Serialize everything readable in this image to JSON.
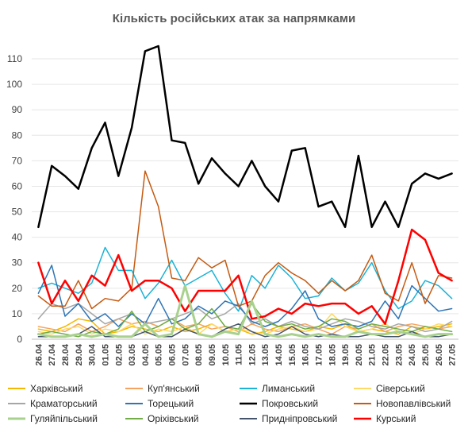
{
  "chart_data": {
    "type": "line",
    "title": "Кількість російських атак за напрямками",
    "xlabel": "",
    "ylabel": "",
    "ylim": [
      0,
      115
    ],
    "yticks": [
      0,
      10,
      20,
      30,
      40,
      50,
      60,
      70,
      80,
      90,
      100,
      110
    ],
    "grid": true,
    "legend_position": "bottom",
    "x": [
      "26.04",
      "27.04",
      "28.04",
      "29.04",
      "30.04",
      "01.05",
      "02.05",
      "03.05",
      "04.05",
      "05.05",
      "06.05",
      "07.05",
      "08.05",
      "09.05",
      "10.05",
      "11.05",
      "12.05",
      "13.05",
      "14.05",
      "15.05",
      "16.05",
      "17.05",
      "18.05",
      "19.05",
      "20.05",
      "21.05",
      "22.05",
      "23.05",
      "24.05",
      "25.05",
      "26.05",
      "27.05"
    ],
    "series": [
      {
        "name": "Харківський",
        "color": "#f5b800",
        "width": 1.5,
        "values": [
          4,
          3,
          5,
          8,
          7,
          2,
          3,
          5,
          4,
          3,
          5,
          3,
          4,
          6,
          3,
          4,
          2,
          3,
          5,
          4,
          3,
          5,
          4,
          6,
          3,
          4,
          3,
          2,
          5,
          4,
          5,
          6
        ]
      },
      {
        "name": "Куп'янський",
        "color": "#f4a460",
        "width": 1.5,
        "values": [
          5,
          4,
          3,
          6,
          3,
          5,
          8,
          6,
          7,
          5,
          8,
          5,
          6,
          4,
          5,
          3,
          6,
          4,
          3,
          5,
          6,
          4,
          2,
          5,
          4,
          6,
          3,
          5,
          6,
          5,
          4,
          5
        ]
      },
      {
        "name": "Лиманський",
        "color": "#1bb3d6",
        "width": 1.5,
        "values": [
          20,
          22,
          20,
          18,
          22,
          36,
          27,
          27,
          16,
          22,
          31,
          21,
          24,
          27,
          18,
          11,
          25,
          20,
          29,
          24,
          16,
          17,
          24,
          19,
          22,
          30,
          19,
          12,
          15,
          23,
          21,
          16
        ]
      },
      {
        "name": "Сіверський",
        "color": "#ffd966",
        "width": 1.5,
        "values": [
          3,
          2,
          4,
          5,
          2,
          4,
          3,
          6,
          2,
          4,
          3,
          5,
          2,
          6,
          3,
          4,
          3,
          2,
          4,
          5,
          3,
          4,
          10,
          5,
          3,
          4,
          6,
          3,
          2,
          4,
          6,
          5
        ]
      },
      {
        "name": "Краматорський",
        "color": "#a6a6a6",
        "width": 1.5,
        "values": [
          8,
          14,
          12,
          14,
          10,
          6,
          8,
          10,
          6,
          7,
          8,
          10,
          12,
          8,
          10,
          14,
          6,
          8,
          5,
          7,
          5,
          4,
          6,
          8,
          7,
          5,
          4,
          6,
          5,
          3,
          4,
          7
        ]
      },
      {
        "name": "Торецький",
        "color": "#2e75b6",
        "width": 1.5,
        "values": [
          18,
          29,
          9,
          14,
          7,
          10,
          5,
          10,
          6,
          16,
          6,
          8,
          13,
          10,
          15,
          13,
          7,
          5,
          7,
          12,
          19,
          8,
          5,
          6,
          5,
          7,
          15,
          8,
          21,
          16,
          11,
          12
        ]
      },
      {
        "name": "Покровський",
        "color": "#000000",
        "width": 2.5,
        "values": [
          44,
          68,
          64,
          59,
          75,
          85,
          64,
          83,
          113,
          115,
          78,
          77,
          61,
          71,
          65,
          60,
          70,
          60,
          54,
          74,
          75,
          52,
          54,
          44,
          72,
          44,
          54,
          44,
          61,
          65,
          63,
          65
        ]
      },
      {
        "name": "Новопавлівський",
        "color": "#c55a11",
        "width": 1.5,
        "values": [
          17,
          13,
          13,
          23,
          12,
          16,
          15,
          20,
          66,
          52,
          24,
          23,
          32,
          28,
          31,
          13,
          15,
          25,
          30,
          26,
          23,
          18,
          23,
          19,
          23,
          33,
          18,
          15,
          30,
          14,
          25,
          24
        ]
      },
      {
        "name": "Гуляйпільський",
        "color": "#a9d18e",
        "width": 3,
        "values": [
          2,
          1,
          1,
          2,
          1,
          2,
          1,
          1,
          6,
          1,
          2,
          21,
          2,
          1,
          3,
          2,
          15,
          2,
          1,
          2,
          1,
          2,
          1,
          1,
          3,
          2,
          2,
          3,
          2,
          1,
          2,
          2
        ]
      },
      {
        "name": "Оріхівський",
        "color": "#70ad47",
        "width": 1.5,
        "values": [
          2,
          3,
          2,
          1,
          3,
          2,
          4,
          11,
          3,
          5,
          8,
          4,
          6,
          12,
          5,
          4,
          14,
          7,
          5,
          6,
          4,
          5,
          8,
          7,
          4,
          6,
          5,
          4,
          3,
          5,
          4,
          3
        ]
      },
      {
        "name": "Придніпровський",
        "color": "#44546a",
        "width": 1.5,
        "values": [
          1,
          1,
          1,
          2,
          5,
          1,
          1,
          1,
          3,
          1,
          1,
          4,
          2,
          1,
          4,
          6,
          3,
          1,
          2,
          5,
          2,
          1,
          2,
          1,
          1,
          2,
          1,
          1,
          3,
          1,
          1,
          2
        ]
      },
      {
        "name": "Курський",
        "color": "#ff0000",
        "width": 2.5,
        "values": [
          30,
          14,
          23,
          15,
          25,
          21,
          33,
          19,
          23,
          23,
          20,
          11,
          19,
          19,
          19,
          25,
          8,
          9,
          12,
          10,
          14,
          13,
          14,
          14,
          10,
          13,
          6,
          23,
          43,
          39,
          26,
          23
        ]
      }
    ]
  }
}
